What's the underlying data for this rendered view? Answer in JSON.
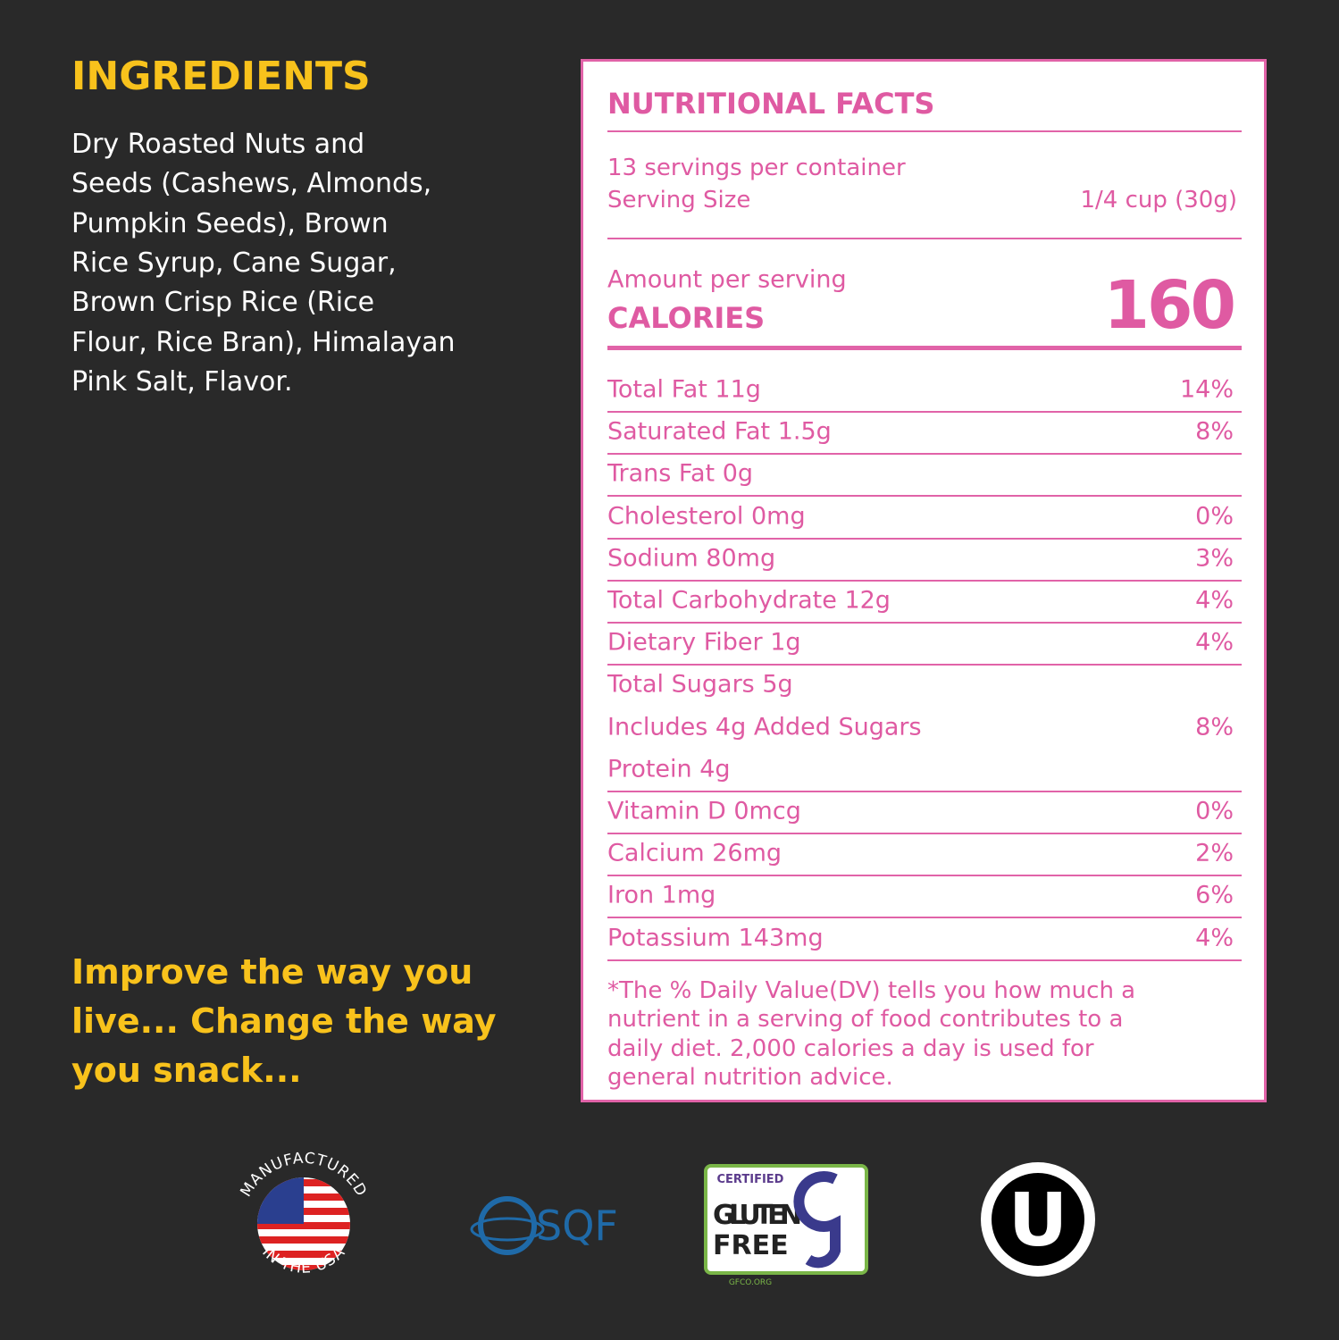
{
  "ingredients": {
    "title": "INGREDIENTS",
    "lines": [
      "Dry Roasted Nuts and",
      "Seeds (Cashews, Almonds,",
      "Pumpkin Seeds), Brown",
      "Rice Syrup, Cane Sugar,",
      "Brown Crisp Rice (Rice",
      "Flour, Rice Bran), Himalayan",
      "Pink Salt, Flavor."
    ]
  },
  "tagline": {
    "lines": [
      "Improve the way you",
      "live... Change the way",
      "you snack..."
    ]
  },
  "nutrition": {
    "title": "NUTRITIONAL FACTS",
    "servings": "13 servings per container",
    "serving_size_label": "Serving Size",
    "serving_size": "1/4 cup (30g)",
    "amount_label": "Amount per serving",
    "calories_label": "CALORIES",
    "calories": "160",
    "rows": [
      {
        "name": "Total Fat 11g",
        "dv": "14%"
      },
      {
        "name": "Saturated Fat 1.5g",
        "dv": "8%"
      },
      {
        "name": "Trans Fat 0g"
      },
      {
        "name": "Cholesterol 0mg",
        "dv": "0%"
      },
      {
        "name": "Sodium 80mg",
        "dv": "3%"
      },
      {
        "name": "Total Carbohydrate 12g",
        "dv": "4%"
      },
      {
        "name": "Dietary Fiber 1g",
        "dv": "4%"
      },
      {
        "name": "Total Sugars 5g"
      },
      {
        "name": "Includes 4g Added Sugars",
        "dv": "8%"
      },
      {
        "name": "Protein 4g"
      },
      {
        "name": "Vitamin D 0mcg",
        "dv": "0%"
      },
      {
        "name": "Calcium 26mg",
        "dv": "2%"
      },
      {
        "name": "Iron 1mg",
        "dv": "6%"
      },
      {
        "name": "Potassium 143mg",
        "dv": "4%"
      }
    ],
    "footnote": [
      "*The % Daily Value(DV) tells you how much a",
      "nutrient in a serving of food contributes to a",
      "daily diet. 2,000 calories a day is used for",
      "general nutrition advice."
    ]
  },
  "badges": {
    "usa_top": "MANUFACTURED",
    "usa_bottom": "IN THE USA",
    "sqf": "SQF",
    "gf_certified": "CERTIFIED",
    "gf_gluten": "GLUTEN",
    "gf_free": "FREE",
    "gf_site": "GFCO.ORG",
    "kosher": "U"
  }
}
